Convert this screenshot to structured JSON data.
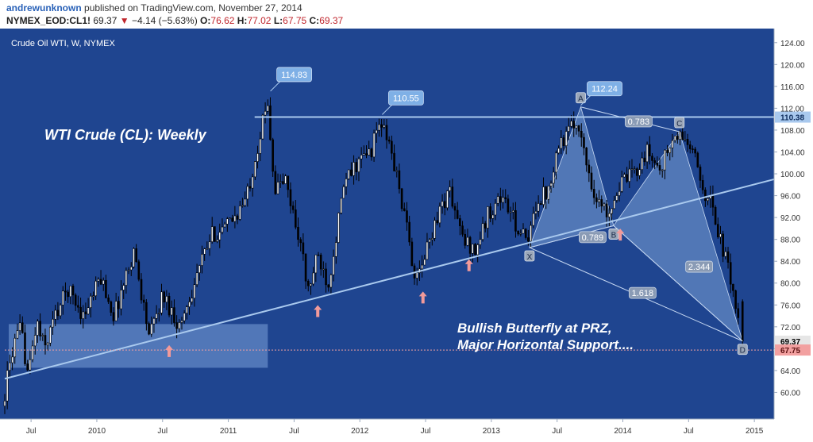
{
  "header": {
    "author": "andrewunknown",
    "published": "published on TradingView.com, November 27, 2014",
    "symbol": "NYMEX_EOD:CL1!",
    "last": "69.37",
    "change_arrow": "▼",
    "change": "−4.14 (−5.63%)",
    "o_label": "O:",
    "o": "76.62",
    "h_label": "H:",
    "h": "77.02",
    "l_label": "L:",
    "l": "67.75",
    "c_label": "C:",
    "c": "69.37"
  },
  "colors": {
    "background": "#1f4590",
    "bull": "#ffffff",
    "bear": "#000000",
    "trendline": "#a9c9ee",
    "pattern_fill": "#7aa0d6",
    "marker_arrow": "#f29a9a",
    "last_price_tag": "#e6e6e6",
    "low_tag": "#f2a0a0"
  },
  "chart_data": {
    "type": "candlestick",
    "title": "Crude Oil WTI, W, NYMEX",
    "annotation_title": "WTI Crude (CL): Weekly",
    "annotation_note_1": "Bullish Butterfly at PRZ,",
    "annotation_note_2": "Major Horizontal Support....",
    "ylim": [
      56,
      126
    ],
    "xlim": [
      2009.3,
      2015.15
    ],
    "y_ticks": [
      "124.00",
      "120.00",
      "116.00",
      "112.00",
      "108.00",
      "104.00",
      "100.00",
      "96.00",
      "92.00",
      "88.00",
      "84.00",
      "80.00",
      "76.00",
      "72.00",
      "68.00",
      "64.00",
      "60.00"
    ],
    "x_ticks": [
      {
        "label": "Jul",
        "t": 2009.5
      },
      {
        "label": "2010",
        "t": 2010.0
      },
      {
        "label": "Jul",
        "t": 2010.5
      },
      {
        "label": "2011",
        "t": 2011.0
      },
      {
        "label": "Jul",
        "t": 2011.5
      },
      {
        "label": "2012",
        "t": 2012.0
      },
      {
        "label": "Jul",
        "t": 2012.5
      },
      {
        "label": "2013",
        "t": 2013.0
      },
      {
        "label": "Jul",
        "t": 2013.5
      },
      {
        "label": "2014",
        "t": 2014.0
      },
      {
        "label": "Jul",
        "t": 2014.5
      },
      {
        "label": "2015",
        "t": 2015.0
      }
    ],
    "path": [
      [
        2009.3,
        57.5
      ],
      [
        2009.38,
        68
      ],
      [
        2009.44,
        71.5
      ],
      [
        2009.5,
        63
      ],
      [
        2009.56,
        73
      ],
      [
        2009.62,
        68
      ],
      [
        2009.7,
        74
      ],
      [
        2009.8,
        79
      ],
      [
        2009.92,
        74
      ],
      [
        2010.05,
        81
      ],
      [
        2010.15,
        74
      ],
      [
        2010.3,
        86
      ],
      [
        2010.42,
        70
      ],
      [
        2010.52,
        78
      ],
      [
        2010.65,
        72
      ],
      [
        2010.8,
        83
      ],
      [
        2010.9,
        89
      ],
      [
        2011.0,
        90
      ],
      [
        2011.15,
        95
      ],
      [
        2011.25,
        106
      ],
      [
        2011.32,
        113.5
      ],
      [
        2011.37,
        97
      ],
      [
        2011.45,
        99
      ],
      [
        2011.58,
        86
      ],
      [
        2011.62,
        78
      ],
      [
        2011.7,
        85
      ],
      [
        2011.78,
        80
      ],
      [
        2011.9,
        98
      ],
      [
        2012.0,
        102
      ],
      [
        2012.1,
        104
      ],
      [
        2012.17,
        109.5
      ],
      [
        2012.25,
        105
      ],
      [
        2012.33,
        96
      ],
      [
        2012.45,
        80
      ],
      [
        2012.5,
        84
      ],
      [
        2012.6,
        92
      ],
      [
        2012.7,
        97
      ],
      [
        2012.8,
        88
      ],
      [
        2012.9,
        86
      ],
      [
        2013.0,
        93
      ],
      [
        2013.1,
        96
      ],
      [
        2013.2,
        91
      ],
      [
        2013.3,
        87
      ],
      [
        2013.36,
        95
      ],
      [
        2013.45,
        97
      ],
      [
        2013.52,
        105
      ],
      [
        2013.62,
        108
      ],
      [
        2013.68,
        110
      ],
      [
        2013.72,
        104
      ],
      [
        2013.82,
        95
      ],
      [
        2013.9,
        93
      ],
      [
        2014.0,
        98
      ],
      [
        2014.1,
        100
      ],
      [
        2014.2,
        104
      ],
      [
        2014.3,
        101
      ],
      [
        2014.4,
        106
      ],
      [
        2014.47,
        107
      ],
      [
        2014.55,
        104
      ],
      [
        2014.62,
        98
      ],
      [
        2014.7,
        94
      ],
      [
        2014.78,
        86
      ],
      [
        2014.85,
        80
      ],
      [
        2014.89,
        74
      ],
      [
        2014.91,
        69.4
      ]
    ],
    "last_weeks": [
      {
        "o": 76.62,
        "h": 77.02,
        "l": 67.75,
        "c": 69.37
      }
    ],
    "trendline": {
      "t0": 2009.3,
      "v0": 62.5,
      "t1": 2015.15,
      "v1": 99.0
    },
    "horizontal_line": {
      "value": 110.38,
      "label": "110.38"
    },
    "last_price": {
      "value": 69.37,
      "label": "69.37"
    },
    "low_line": {
      "value": 67.75,
      "label": "67.75"
    },
    "support_box": {
      "t0": 2009.33,
      "t1": 2011.3,
      "v0": 64.5,
      "v1": 72.5
    },
    "callouts": [
      {
        "label": "114.83",
        "t": 2011.32,
        "v": 114.83
      },
      {
        "label": "110.55",
        "t": 2012.17,
        "v": 110.55
      },
      {
        "label": "112.24",
        "t": 2013.68,
        "v": 112.24
      }
    ],
    "butterfly": {
      "points": [
        {
          "label": "X",
          "t": 2013.29,
          "v": 86.5
        },
        {
          "label": "A",
          "t": 2013.68,
          "v": 112.24
        },
        {
          "label": "B",
          "t": 2013.93,
          "v": 90.5
        },
        {
          "label": "C",
          "t": 2014.43,
          "v": 107.7
        },
        {
          "label": "D",
          "t": 2014.91,
          "v": 69.4
        }
      ],
      "ratios": [
        {
          "label": "0.789",
          "t": 2013.77,
          "v": 88.4
        },
        {
          "label": "0.783",
          "t": 2014.12,
          "v": 109.6
        },
        {
          "label": "2.344",
          "t": 2014.58,
          "v": 83.0
        },
        {
          "label": "1.618",
          "t": 2014.15,
          "v": 78.2
        }
      ]
    },
    "arrows": [
      {
        "t": 2010.55,
        "v": 67.5
      },
      {
        "t": 2011.68,
        "v": 74.8
      },
      {
        "t": 2012.48,
        "v": 77.3
      },
      {
        "t": 2012.83,
        "v": 83.2
      },
      {
        "t": 2013.98,
        "v": 88.8
      }
    ]
  }
}
